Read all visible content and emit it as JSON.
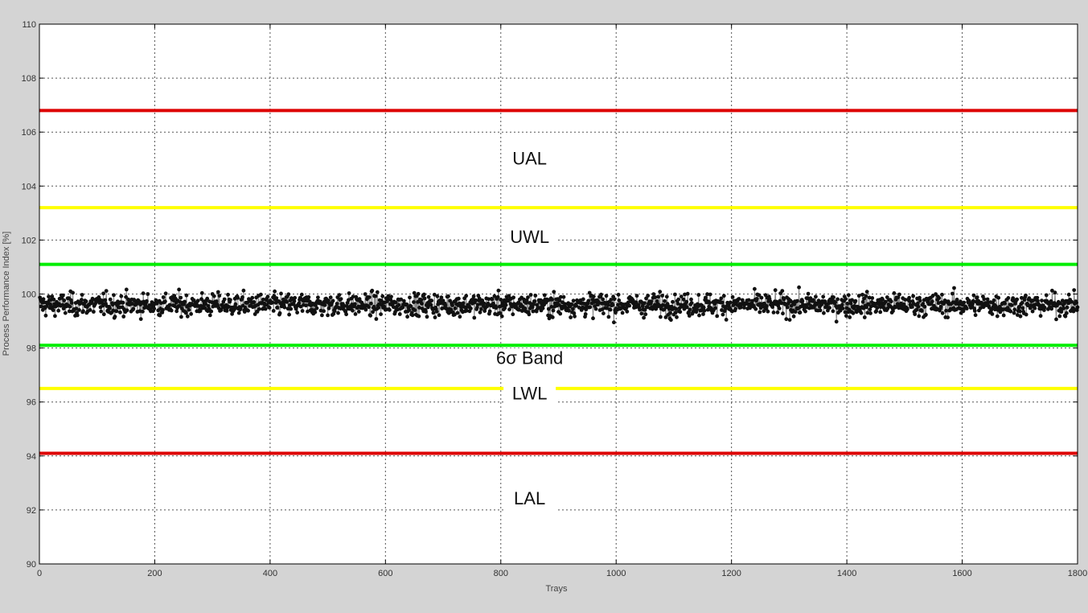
{
  "chart_data": {
    "type": "scatter",
    "title": "",
    "xlabel": "Trays",
    "ylabel": "Process Performance Index [%]",
    "xlim": [
      0,
      1800
    ],
    "ylim": [
      90,
      110
    ],
    "xticks": [
      0,
      200,
      400,
      600,
      800,
      1000,
      1200,
      1400,
      1600,
      1800
    ],
    "yticks": [
      90,
      92,
      94,
      96,
      98,
      100,
      102,
      104,
      106,
      108,
      110
    ],
    "grid": true,
    "series": [
      {
        "marker": "filled-circle",
        "line": "thin-gray",
        "x_start": 1,
        "x_end": 1800,
        "n_points": 1800,
        "mean": 99.6,
        "y_min": 98.3,
        "y_max": 100.7
      }
    ],
    "limit_lines": [
      {
        "name": "UAL",
        "value": 106.8,
        "color": "#dd0000"
      },
      {
        "name": "UWL",
        "value": 103.2,
        "color": "#ffff00"
      },
      {
        "name": "6σ Band upper",
        "value": 101.1,
        "color": "#00ee00"
      },
      {
        "name": "6σ Band lower",
        "value": 98.1,
        "color": "#00ee00"
      },
      {
        "name": "LWL",
        "value": 96.5,
        "color": "#ffff00"
      },
      {
        "name": "LAL",
        "value": 94.1,
        "color": "#dd0000"
      }
    ],
    "annotations": [
      {
        "text": "UAL",
        "x": 850,
        "y": 104.8
      },
      {
        "text": "UWL",
        "x": 850,
        "y": 101.9
      },
      {
        "text": "6σ Band",
        "x": 850,
        "y": 97.4
      },
      {
        "text": "LWL",
        "x": 850,
        "y": 96.1
      },
      {
        "text": "LAL",
        "x": 850,
        "y": 92.2
      }
    ]
  }
}
